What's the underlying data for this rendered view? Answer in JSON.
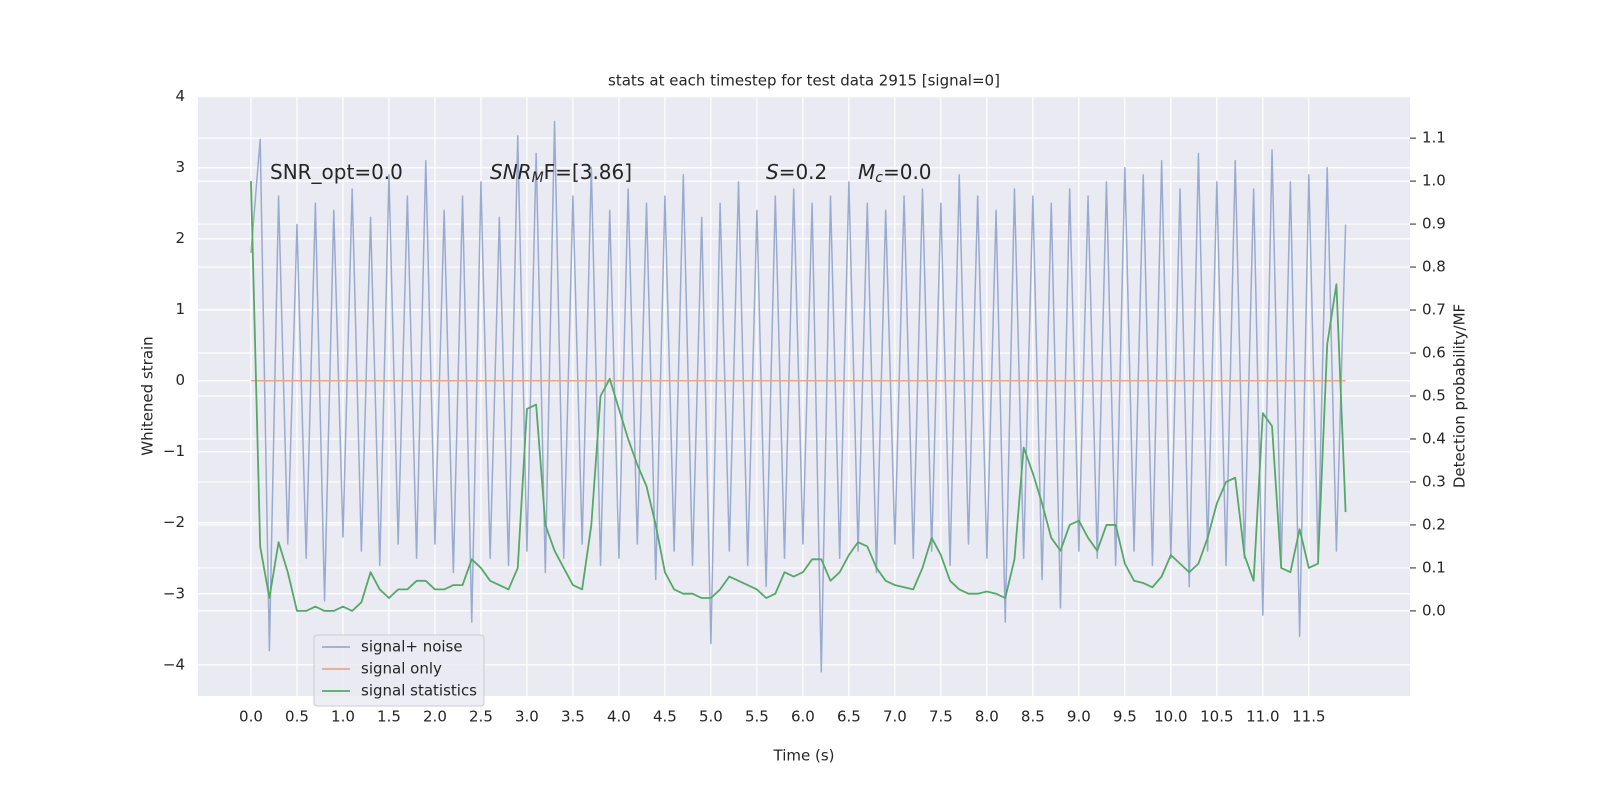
{
  "chart_data": {
    "type": "line",
    "title": "stats at each timestep for test data 2915 [signal=0]",
    "x_label": "Time (s)",
    "y_label": "Whitened strain",
    "y2_label": "Detection probability/MF",
    "annotations": [
      {
        "main": "SNR_opt=0.0"
      },
      {
        "main": "SNR",
        "sub": "M",
        "rest": "F=[3.86]"
      },
      {
        "main": "S",
        "rest": "=0.2"
      },
      {
        "main": "M",
        "sub": "c",
        "rest": "=0.0"
      }
    ],
    "xlim": [
      -0.576,
      12.6
    ],
    "ylim": [
      -4.44,
      4.01
    ],
    "y2lim": [
      -0.198,
      1.198
    ],
    "xticks": [
      {
        "value": 0,
        "label": "0.0"
      },
      {
        "value": 0.5,
        "label": "0.5"
      },
      {
        "value": 1,
        "label": "1.0"
      },
      {
        "value": 1.5,
        "label": "1.5"
      },
      {
        "value": 2,
        "label": "2.0"
      },
      {
        "value": 2.5,
        "label": "2.5"
      },
      {
        "value": 3,
        "label": "3.0"
      },
      {
        "value": 3.5,
        "label": "3.5"
      },
      {
        "value": 4,
        "label": "4.0"
      },
      {
        "value": 4.5,
        "label": "4.5"
      },
      {
        "value": 5,
        "label": "5.0"
      },
      {
        "value": 5.5,
        "label": "5.5"
      },
      {
        "value": 6,
        "label": "6.0"
      },
      {
        "value": 6.5,
        "label": "6.5"
      },
      {
        "value": 7,
        "label": "7.0"
      },
      {
        "value": 7.5,
        "label": "7.5"
      },
      {
        "value": 8,
        "label": "8.0"
      },
      {
        "value": 8.5,
        "label": "8.5"
      },
      {
        "value": 9,
        "label": "9.0"
      },
      {
        "value": 9.5,
        "label": "9.5"
      },
      {
        "value": 10,
        "label": "10.0"
      },
      {
        "value": 10.5,
        "label": "10.5"
      },
      {
        "value": 11,
        "label": "11.0"
      },
      {
        "value": 11.5,
        "label": "11.5"
      }
    ],
    "yticks": [
      {
        "value": -4,
        "label": "−4"
      },
      {
        "value": -3,
        "label": "−3"
      },
      {
        "value": -2,
        "label": "−2"
      },
      {
        "value": -1,
        "label": "−1"
      },
      0,
      1,
      2,
      3,
      4
    ],
    "y2ticks": [
      {
        "value": 0,
        "label": "0.0"
      },
      {
        "value": 0.1,
        "label": "0.1"
      },
      {
        "value": 0.2,
        "label": "0.2"
      },
      {
        "value": 0.3,
        "label": "0.3"
      },
      {
        "value": 0.4,
        "label": "0.4"
      },
      {
        "value": 0.5,
        "label": "0.5"
      },
      {
        "value": 0.6,
        "label": "0.6"
      },
      {
        "value": 0.7,
        "label": "0.7"
      },
      {
        "value": 0.8,
        "label": "0.8"
      },
      {
        "value": 0.9,
        "label": "0.9"
      },
      {
        "value": 1,
        "label": "1.0"
      },
      {
        "value": 1.1,
        "label": "1.1"
      }
    ],
    "grid": true,
    "legend": "lower left",
    "x": [
      0,
      0.1,
      0.2,
      0.3,
      0.4,
      0.5,
      0.6,
      0.7,
      0.8,
      0.9,
      1,
      1.1,
      1.2,
      1.3,
      1.4,
      1.5,
      1.6,
      1.7,
      1.8,
      1.9,
      2,
      2.1,
      2.2,
      2.3,
      2.4,
      2.5,
      2.6,
      2.7,
      2.8,
      2.9,
      3,
      3.1,
      3.2,
      3.3,
      3.4,
      3.5,
      3.6,
      3.7,
      3.8,
      3.9,
      4,
      4.1,
      4.2,
      4.3,
      4.4,
      4.5,
      4.6,
      4.7,
      4.8,
      4.9,
      5,
      5.1,
      5.2,
      5.3,
      5.4,
      5.5,
      5.6,
      5.7,
      5.8,
      5.9,
      6,
      6.1,
      6.2,
      6.3,
      6.4,
      6.5,
      6.6,
      6.7,
      6.8,
      6.9,
      7,
      7.1,
      7.2,
      7.3,
      7.4,
      7.5,
      7.6,
      7.7,
      7.8,
      7.9,
      8,
      8.1,
      8.2,
      8.3,
      8.4,
      8.5,
      8.6,
      8.7,
      8.8,
      8.9,
      9,
      9.1,
      9.2,
      9.3,
      9.4,
      9.5,
      9.6,
      9.7,
      9.8,
      9.9,
      10,
      10.1,
      10.2,
      10.3,
      10.4,
      10.5,
      10.6,
      10.7,
      10.8,
      10.9,
      11,
      11.1,
      11.2,
      11.3,
      11.4,
      11.5,
      11.6,
      11.7,
      11.8,
      11.9
    ],
    "series": [
      {
        "name": "signal+ noise",
        "color": "#9aabd0",
        "axis": "y",
        "values": [
          1.8,
          3.4,
          -3.8,
          2.6,
          -2.3,
          2.2,
          -2.5,
          2.5,
          -3.1,
          2.4,
          -2.2,
          2.7,
          -2.4,
          2.3,
          -2.6,
          2.9,
          -2.3,
          2.6,
          -2.5,
          3.1,
          -2.3,
          2.4,
          -2.7,
          2.6,
          -3.4,
          2.8,
          -2.5,
          2.3,
          -2.6,
          3.45,
          -2.4,
          3.2,
          -2.7,
          3.65,
          -2.5,
          2.6,
          -2.3,
          3.0,
          -2.6,
          2.4,
          -2.5,
          2.7,
          -2.3,
          2.5,
          -2.8,
          2.6,
          -2.4,
          2.9,
          -2.6,
          2.3,
          -3.7,
          2.5,
          -2.4,
          2.8,
          -2.6,
          2.4,
          -2.9,
          2.6,
          -2.5,
          2.7,
          -2.3,
          2.5,
          -4.1,
          2.6,
          -2.5,
          2.8,
          -2.4,
          2.5,
          -2.7,
          2.4,
          -2.3,
          2.6,
          -2.5,
          2.7,
          -2.4,
          2.5,
          -2.6,
          2.9,
          -2.3,
          2.6,
          -2.5,
          2.4,
          -3.4,
          2.7,
          -2.5,
          2.6,
          -2.8,
          2.5,
          -3.2,
          2.7,
          -2.4,
          2.6,
          -2.5,
          2.8,
          -2.6,
          3.0,
          -2.4,
          2.9,
          -2.6,
          3.1,
          -2.5,
          2.7,
          -2.9,
          3.2,
          -2.4,
          2.8,
          -2.6,
          3.1,
          -2.5,
          2.7,
          -3.3,
          3.25,
          -2.6,
          2.8,
          -3.6,
          2.9,
          -2.5,
          3.0,
          -2.4,
          2.2
        ]
      },
      {
        "name": "signal only",
        "color": "#eaa88a",
        "axis": "y",
        "values": [
          0,
          0,
          0,
          0,
          0,
          0,
          0,
          0,
          0,
          0,
          0,
          0,
          0,
          0,
          0,
          0,
          0,
          0,
          0,
          0,
          0,
          0,
          0,
          0,
          0,
          0,
          0,
          0,
          0,
          0,
          0,
          0,
          0,
          0,
          0,
          0,
          0,
          0,
          0,
          0,
          0,
          0,
          0,
          0,
          0,
          0,
          0,
          0,
          0,
          0,
          0,
          0,
          0,
          0,
          0,
          0,
          0,
          0,
          0,
          0,
          0,
          0,
          0,
          0,
          0,
          0,
          0,
          0,
          0,
          0,
          0,
          0,
          0,
          0,
          0,
          0,
          0,
          0,
          0,
          0,
          0,
          0,
          0,
          0,
          0,
          0,
          0,
          0,
          0,
          0,
          0,
          0,
          0,
          0,
          0,
          0,
          0,
          0,
          0,
          0,
          0,
          0,
          0,
          0,
          0,
          0,
          0,
          0,
          0,
          0,
          0,
          0,
          0,
          0,
          0,
          0,
          0,
          0,
          0,
          0
        ]
      },
      {
        "name": "signal statistics",
        "color": "#55a868",
        "axis": "y2",
        "values": [
          1.0,
          0.15,
          0.03,
          0.16,
          0.09,
          0.0,
          0.0,
          0.01,
          0.0,
          0.0,
          0.01,
          0.0,
          0.02,
          0.09,
          0.05,
          0.03,
          0.05,
          0.05,
          0.07,
          0.07,
          0.05,
          0.05,
          0.06,
          0.06,
          0.12,
          0.1,
          0.07,
          0.06,
          0.05,
          0.1,
          0.47,
          0.48,
          0.2,
          0.14,
          0.1,
          0.06,
          0.05,
          0.2,
          0.5,
          0.54,
          0.47,
          0.4,
          0.34,
          0.29,
          0.2,
          0.09,
          0.05,
          0.04,
          0.04,
          0.03,
          0.03,
          0.05,
          0.08,
          0.07,
          0.06,
          0.05,
          0.03,
          0.04,
          0.09,
          0.08,
          0.09,
          0.12,
          0.12,
          0.07,
          0.09,
          0.13,
          0.16,
          0.15,
          0.1,
          0.07,
          0.06,
          0.055,
          0.05,
          0.1,
          0.17,
          0.13,
          0.07,
          0.05,
          0.04,
          0.04,
          0.045,
          0.04,
          0.03,
          0.12,
          0.38,
          0.32,
          0.25,
          0.17,
          0.14,
          0.2,
          0.21,
          0.17,
          0.14,
          0.2,
          0.2,
          0.11,
          0.07,
          0.065,
          0.055,
          0.08,
          0.13,
          0.11,
          0.09,
          0.11,
          0.17,
          0.25,
          0.3,
          0.31,
          0.13,
          0.07,
          0.46,
          0.43,
          0.1,
          0.09,
          0.19,
          0.1,
          0.11,
          0.62,
          0.76,
          0.23
        ]
      }
    ]
  }
}
